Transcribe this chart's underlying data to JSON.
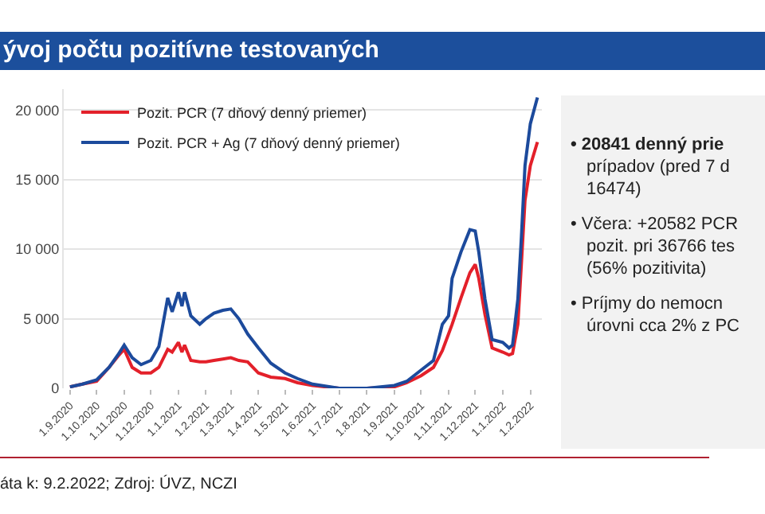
{
  "chart_data": {
    "type": "line",
    "title": "ývoj počtu pozitívne testovaných",
    "x": [
      "2020-09-01",
      "2020-09-15",
      "2020-10-01",
      "2020-10-15",
      "2020-10-25",
      "2020-11-01",
      "2020-11-10",
      "2020-11-20",
      "2020-12-01",
      "2020-12-10",
      "2020-12-20",
      "2020-12-25",
      "2021-01-01",
      "2021-01-05",
      "2021-01-08",
      "2021-01-15",
      "2021-01-25",
      "2021-02-01",
      "2021-02-10",
      "2021-02-20",
      "2021-03-01",
      "2021-03-10",
      "2021-03-20",
      "2021-04-01",
      "2021-04-15",
      "2021-05-01",
      "2021-05-15",
      "2021-06-01",
      "2021-07-01",
      "2021-08-01",
      "2021-09-01",
      "2021-09-15",
      "2021-10-01",
      "2021-10-15",
      "2021-10-25",
      "2021-11-01",
      "2021-11-05",
      "2021-11-15",
      "2021-11-25",
      "2021-12-01",
      "2021-12-05",
      "2021-12-12",
      "2021-12-20",
      "2022-01-01",
      "2022-01-08",
      "2022-01-12",
      "2022-01-18",
      "2022-01-22",
      "2022-01-26",
      "2022-02-01",
      "2022-02-09"
    ],
    "series": [
      {
        "name": "Pozit. PCR (7 dňový denný priemer)",
        "color": "#e3202a",
        "values": [
          100,
          300,
          500,
          1500,
          2300,
          2800,
          1500,
          1100,
          1100,
          1500,
          2800,
          2600,
          3300,
          2600,
          3100,
          2000,
          1900,
          1900,
          2000,
          2100,
          2200,
          2000,
          1900,
          1100,
          800,
          700,
          400,
          200,
          0,
          0,
          100,
          400,
          900,
          1500,
          2700,
          3900,
          4600,
          6500,
          8300,
          8900,
          7900,
          5300,
          2900,
          2600,
          2400,
          2500,
          4600,
          9000,
          13500,
          16000,
          17700
        ]
      },
      {
        "name": "Pozit. PCR + Ag (7 dňový denný priemer)",
        "color": "#1c4a9c",
        "values": [
          100,
          300,
          600,
          1500,
          2400,
          3100,
          2200,
          1700,
          2000,
          3000,
          6500,
          5500,
          6900,
          5900,
          6900,
          5200,
          4600,
          5000,
          5400,
          5600,
          5700,
          5000,
          3900,
          2900,
          1800,
          1100,
          700,
          300,
          0,
          0,
          200,
          500,
          1300,
          2000,
          4600,
          5200,
          7900,
          9800,
          11400,
          11300,
          9800,
          6400,
          3500,
          3300,
          2900,
          3100,
          6400,
          10900,
          16000,
          19000,
          20900
        ]
      }
    ],
    "xlim": [
      "2020-08-25",
      "2022-02-14"
    ],
    "xticks": [
      {
        "value": "2020-09-01",
        "label": "1.9.2020"
      },
      {
        "value": "2020-10-01",
        "label": "1.10.2020"
      },
      {
        "value": "2020-11-01",
        "label": "1.11.2020"
      },
      {
        "value": "2020-12-01",
        "label": "1.12.2020"
      },
      {
        "value": "2021-01-01",
        "label": "1.1.2021"
      },
      {
        "value": "2021-02-01",
        "label": "1.2.2021"
      },
      {
        "value": "2021-03-01",
        "label": "1.3.2021"
      },
      {
        "value": "2021-04-01",
        "label": "1.4.2021"
      },
      {
        "value": "2021-05-01",
        "label": "1.5.2021"
      },
      {
        "value": "2021-06-01",
        "label": "1.6.2021"
      },
      {
        "value": "2021-07-01",
        "label": "1.7.2021"
      },
      {
        "value": "2021-08-01",
        "label": "1.8.2021"
      },
      {
        "value": "2021-09-01",
        "label": "1.9.2021"
      },
      {
        "value": "2021-10-01",
        "label": "1.10.2021"
      },
      {
        "value": "2021-11-01",
        "label": "1.11.2021"
      },
      {
        "value": "2021-12-01",
        "label": "1.12.2021"
      },
      {
        "value": "2022-01-01",
        "label": "1.1.2022"
      },
      {
        "value": "2022-02-01",
        "label": "1.2.2022"
      }
    ],
    "ylim": [
      0,
      21500
    ],
    "yticks": [
      0,
      {
        "value": 5000,
        "label": "5 000"
      },
      {
        "value": 10000,
        "label": "10 000"
      },
      {
        "value": 15000,
        "label": "15 000"
      },
      {
        "value": 20000,
        "label": "20 000"
      }
    ],
    "grid": "y",
    "legend": "top left",
    "marker": "none",
    "line_style": "solid",
    "annotations": [
      "• 20841 denný prie\nprípadov (pred 7 d\n16474)",
      "• Včera: +20582 PCR\npozit. pri 36766 tes\n(56% pozitivita)",
      "• Príjmy do nemocn\núrovni cca 2% z PC",
      "áta k: 9.2.2022; Zdroj: ÚVZ, NCZI"
    ]
  }
}
